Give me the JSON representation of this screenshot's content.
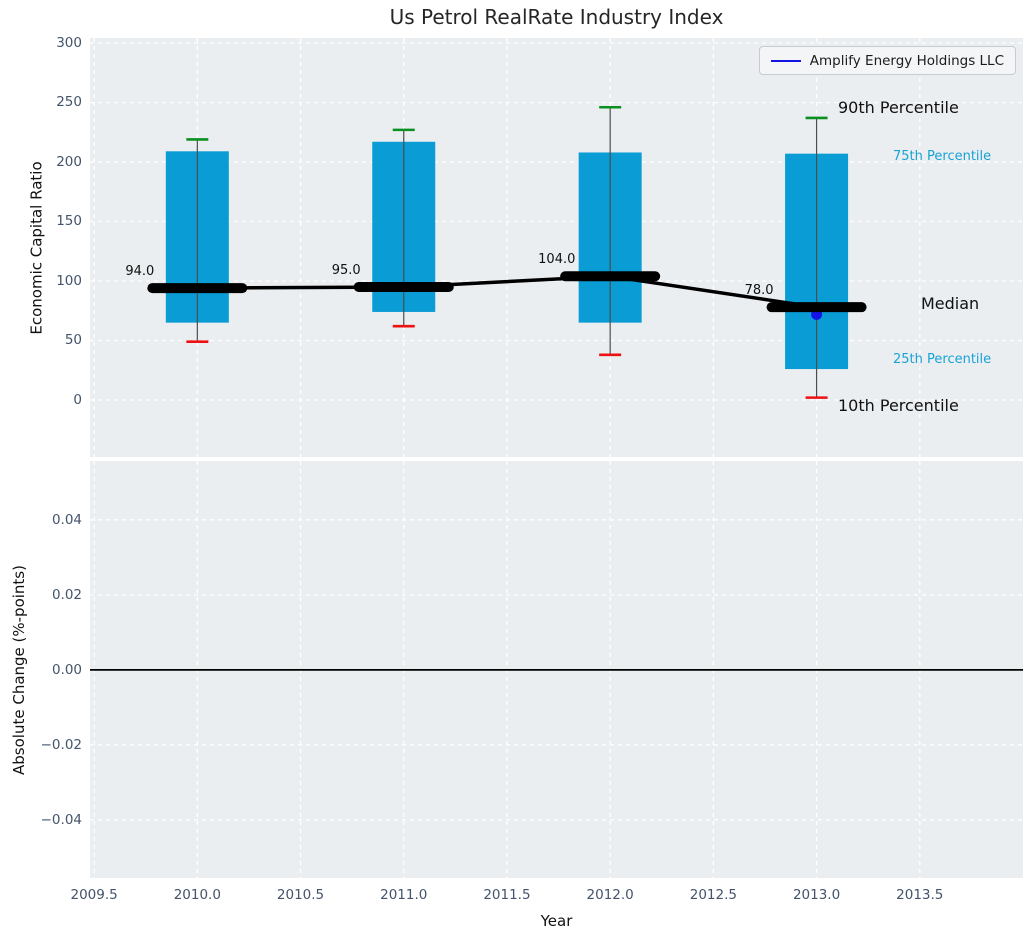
{
  "title": "Us Petrol RealRate Industry Index",
  "legend": {
    "label": "Amplify Energy Holdings LLC"
  },
  "colors": {
    "bar": "#0a9cd4",
    "cap_top": "#0a9020",
    "cap_bottom": "#ed1111",
    "median": "#000000",
    "company": "#1414e6",
    "axes_bg": "#eaeef1",
    "grid": "#ffffff",
    "tick_label": "#44546b",
    "annotation_cyan": "#18a3d6",
    "title": "#262626"
  },
  "chart_data": [
    {
      "type": "bar",
      "subplot": "top",
      "title": "Us Petrol RealRate Industry Index",
      "xlabel": "Year",
      "ylabel": "Economic Capital Ratio",
      "x": [
        2010.0,
        2011.0,
        2012.0,
        2013.0
      ],
      "series": [
        {
          "name": "90th Percentile",
          "values": [
            219,
            227,
            246,
            237
          ]
        },
        {
          "name": "75th Percentile",
          "values": [
            209,
            217,
            208,
            207
          ]
        },
        {
          "name": "Median",
          "values": [
            94.0,
            95.0,
            104.0,
            78.0
          ]
        },
        {
          "name": "25th Percentile",
          "values": [
            65,
            74,
            65,
            26
          ]
        },
        {
          "name": "10th Percentile",
          "values": [
            49,
            62,
            38,
            2
          ]
        }
      ],
      "median_labels": [
        "94.0",
        "95.0",
        "104.0",
        "78.0"
      ],
      "company_series": {
        "name": "Amplify Energy Holdings LLC",
        "points": [
          {
            "x": 2013.0,
            "y": 72
          }
        ]
      },
      "bar_width_years": 0.3,
      "xlim": [
        2009.48,
        2014.0
      ],
      "ylim": [
        -47.9,
        304.2
      ],
      "ytick_values": [
        0,
        50,
        100,
        150,
        200,
        250,
        300
      ],
      "yticks": [
        "0",
        "50",
        "100",
        "150",
        "200",
        "250",
        "300"
      ],
      "annotations": [
        {
          "text": "90th Percentile",
          "style": "black"
        },
        {
          "text": "75th Percentile",
          "style": "cyan"
        },
        {
          "text": "Median",
          "style": "black"
        },
        {
          "text": "25th Percentile",
          "style": "cyan"
        },
        {
          "text": "10th Percentile",
          "style": "black"
        }
      ],
      "legend_position": "upper right",
      "grid": true
    },
    {
      "type": "line",
      "subplot": "bottom",
      "xlabel": "Year",
      "ylabel": "Absolute Change (%-points)",
      "series": [],
      "zero_line": 0.0,
      "xlim": [
        2009.48,
        2014.0
      ],
      "ylim": [
        -0.0555,
        0.0557
      ],
      "xtick_values": [
        2009.5,
        2010.0,
        2010.5,
        2011.0,
        2011.5,
        2012.0,
        2012.5,
        2013.0,
        2013.5
      ],
      "xticks": [
        "2009.5",
        "2010.0",
        "2010.5",
        "2011.0",
        "2011.5",
        "2012.0",
        "2012.5",
        "2013.0",
        "2013.5"
      ],
      "ytick_values": [
        0.04,
        0.02,
        0.0,
        -0.02,
        -0.04
      ],
      "yticks": [
        "0.04",
        "0.02",
        "0.00",
        "−0.02",
        "−0.04"
      ],
      "grid": true
    }
  ]
}
